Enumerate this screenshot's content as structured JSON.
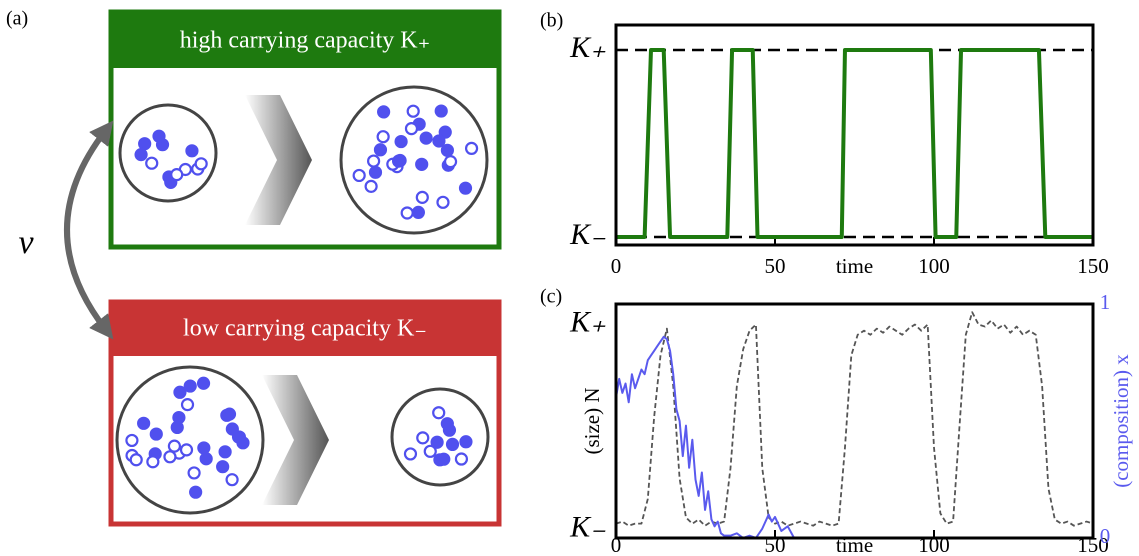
{
  "panel_a": {
    "label": "(a)",
    "nu": "ν",
    "top_box": {
      "title": "high carrying capacity K₊"
    },
    "bottom_box": {
      "title": "low carrying capacity K₋"
    }
  },
  "chart_data": [
    {
      "type": "line",
      "label": "(b)",
      "xlabel": "time",
      "x": [
        0,
        9,
        11,
        15,
        17,
        35,
        36.5,
        43,
        44.5,
        71,
        72,
        99,
        100.5,
        107,
        108.5,
        133,
        135,
        150
      ],
      "values": [
        0,
        0,
        1,
        1,
        0,
        0,
        1,
        1,
        0,
        0,
        1,
        1,
        0,
        0,
        1,
        1,
        0,
        0
      ],
      "color": "#1e7a0f",
      "xlim": [
        0,
        150
      ],
      "xticks": [
        0,
        50,
        100,
        150
      ],
      "ylim": [
        -0.043,
        1.134
      ],
      "yticks": [
        {
          "value": 0,
          "label": "K₋"
        },
        {
          "value": 1,
          "label": "K₊"
        }
      ],
      "grid": true
    },
    {
      "type": "line",
      "label": "(c)",
      "xlabel": "time",
      "ylabel": "(size) N",
      "y2label": "(composition) x",
      "series": [
        {
          "color": "#555555",
          "style": "dashed",
          "x": [
            0,
            2,
            4,
            6,
            8,
            10,
            12,
            14,
            16,
            18,
            20,
            22,
            24,
            26,
            28,
            30,
            32,
            34,
            36,
            38,
            40,
            42,
            44,
            46,
            48,
            50,
            52,
            54,
            56,
            58,
            60,
            62,
            64,
            66,
            68,
            70,
            72,
            74,
            76,
            78,
            80,
            82,
            84,
            86,
            88,
            90,
            92,
            94,
            96,
            98,
            100,
            102,
            104,
            106,
            108,
            110,
            112,
            114,
            116,
            118,
            120,
            122,
            124,
            126,
            128,
            130,
            132,
            134,
            136,
            138,
            140,
            142,
            144,
            146,
            148,
            150
          ],
          "values": [
            0.03,
            0.04,
            0.02,
            0.03,
            0.03,
            0.15,
            0.55,
            0.85,
            0.98,
            0.7,
            0.25,
            0.06,
            0.03,
            0.05,
            0.02,
            0.04,
            0.03,
            0.04,
            0.3,
            0.7,
            0.88,
            0.97,
            1.0,
            0.3,
            0.06,
            0.03,
            0.04,
            0.02,
            0.03,
            0.04,
            0.03,
            0.02,
            0.04,
            0.03,
            0.02,
            0.03,
            0.4,
            0.85,
            0.95,
            0.97,
            0.95,
            0.98,
            0.96,
            0.99,
            0.97,
            0.95,
            0.98,
            1.0,
            0.97,
            1.0,
            0.4,
            0.08,
            0.03,
            0.04,
            0.5,
            0.95,
            1.06,
            1.0,
            0.99,
            1.02,
            0.98,
            1.0,
            0.96,
            0.99,
            0.95,
            0.97,
            0.95,
            0.7,
            0.2,
            0.05,
            0.03,
            0.04,
            0.02,
            0.03,
            0.04,
            0.03
          ]
        },
        {
          "color": "#5a5aee",
          "axis": "y2",
          "x": [
            0,
            1,
            2,
            3,
            4,
            5,
            6,
            7,
            8,
            9,
            10,
            11,
            12,
            13,
            14,
            15,
            16,
            17,
            18,
            19,
            20,
            21,
            22,
            23,
            24,
            25,
            26,
            27,
            28,
            29,
            30,
            31,
            32,
            33,
            34,
            36,
            38,
            40,
            42,
            44,
            46,
            48,
            49,
            50,
            52,
            54,
            56,
            58,
            150
          ],
          "values": [
            0.6,
            0.68,
            0.62,
            0.66,
            0.58,
            0.7,
            0.64,
            0.68,
            0.72,
            0.7,
            0.76,
            0.78,
            0.8,
            0.82,
            0.84,
            0.86,
            0.85,
            0.8,
            0.7,
            0.55,
            0.5,
            0.35,
            0.48,
            0.3,
            0.42,
            0.25,
            0.18,
            0.28,
            0.12,
            0.2,
            0.08,
            0.05,
            0.07,
            0.02,
            0.01,
            0.01,
            0.02,
            0.0,
            0.01,
            0.0,
            0.04,
            0.1,
            0.07,
            0.09,
            0.03,
            0.05,
            0.0,
            0.0,
            0.0
          ]
        }
      ],
      "xlim": [
        0,
        150
      ],
      "xticks": [
        0,
        50,
        100,
        150
      ],
      "ylim": [
        -0.04,
        1.1
      ],
      "yticks": [
        {
          "value": 0,
          "label": "K₋"
        },
        {
          "value": 1,
          "label": "K₊"
        }
      ],
      "y2lim": [
        0,
        1
      ],
      "y2ticks": [
        0,
        1
      ],
      "y2color": "#5a5aee"
    }
  ]
}
